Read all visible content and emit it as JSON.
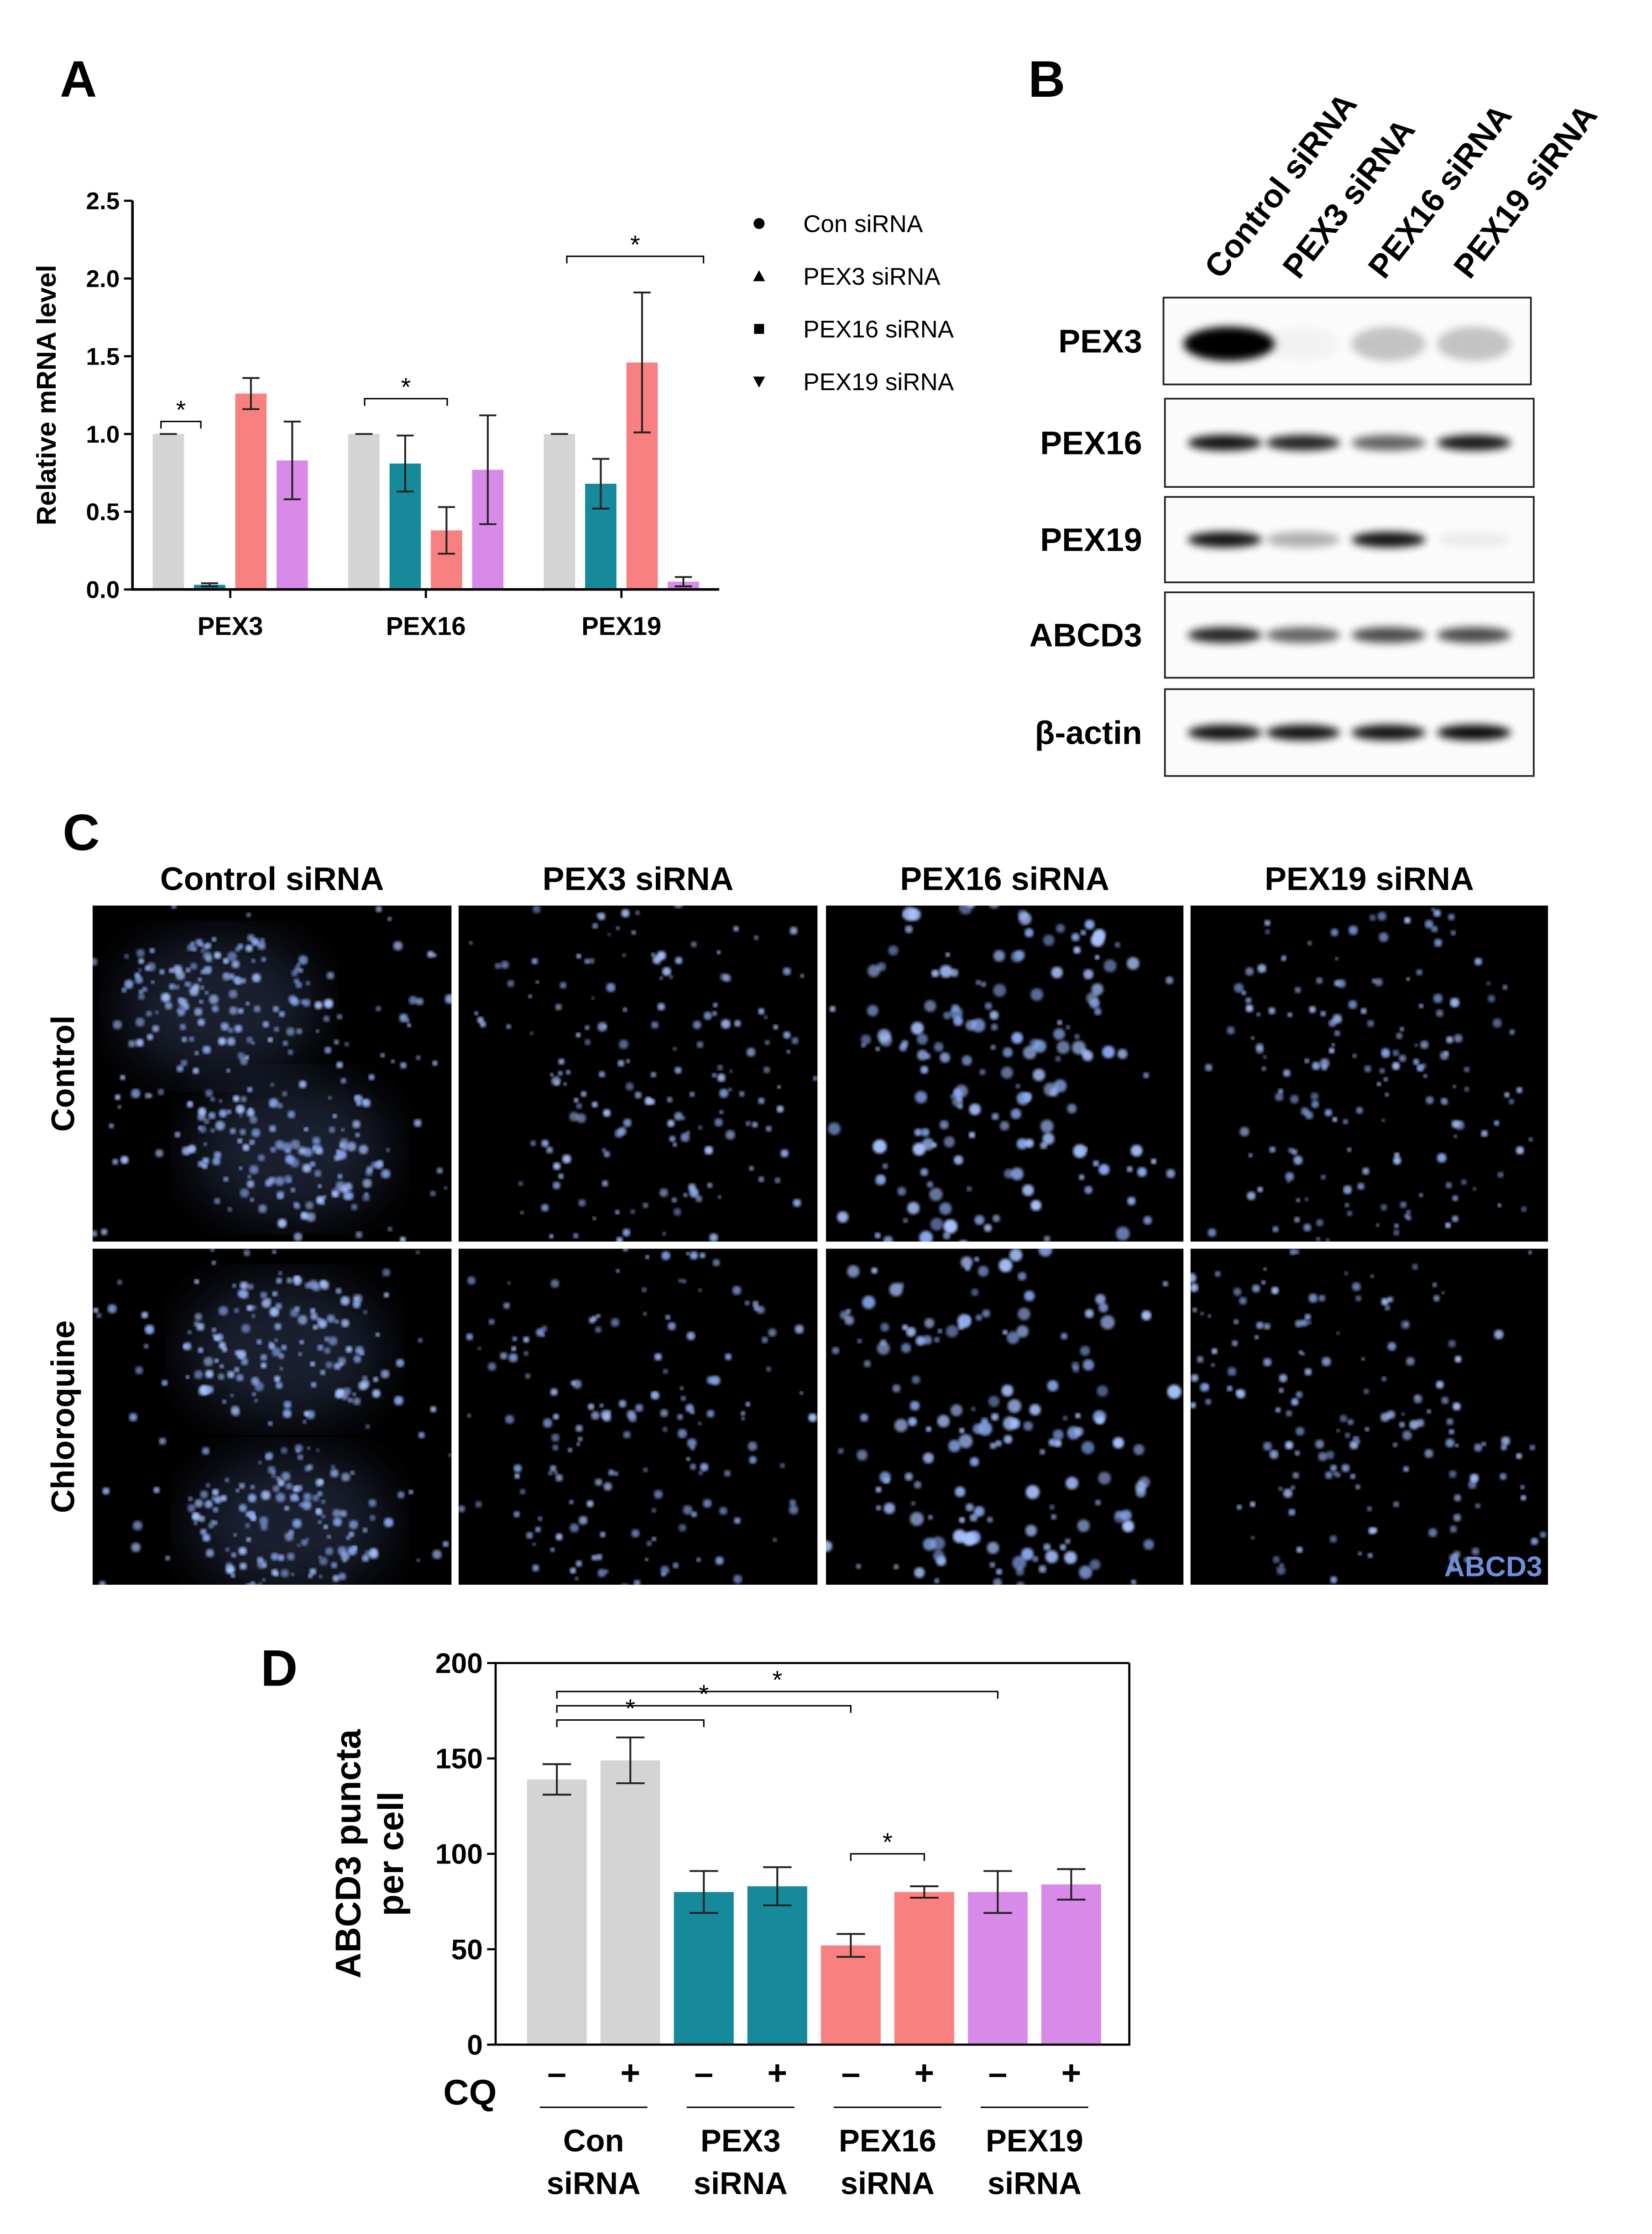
{
  "chart_data": [
    {
      "type": "bar",
      "panel": "A",
      "ylabel": "Relative mRNA level",
      "categories": [
        "PEX3",
        "PEX16",
        "PEX19"
      ],
      "series": [
        {
          "name": "Con siRNA",
          "color": "#d4d4d4",
          "marker": "circle",
          "values": [
            1.0,
            1.0,
            1.0
          ],
          "errors": [
            0,
            0,
            0
          ]
        },
        {
          "name": "PEX3 siRNA",
          "color": "#16899a",
          "marker": "triangle",
          "values": [
            0.03,
            0.81,
            0.68
          ],
          "errors": [
            0.01,
            0.18,
            0.16
          ]
        },
        {
          "name": "PEX16 siRNA",
          "color": "#f88080",
          "marker": "square",
          "values": [
            1.26,
            0.38,
            1.46
          ],
          "errors": [
            0.1,
            0.15,
            0.45
          ]
        },
        {
          "name": "PEX19 siRNA",
          "color": "#d88ae8",
          "marker": "triangle-down",
          "values": [
            0.83,
            0.77,
            0.05
          ],
          "errors": [
            0.25,
            0.35,
            0.03
          ]
        }
      ],
      "ylim": [
        0,
        2.5
      ],
      "yticks": [
        {
          "value": 0,
          "label": "0.0"
        },
        {
          "value": 0.5,
          "label": "0.5"
        },
        {
          "value": 1,
          "label": "1.0"
        },
        {
          "value": 1.5,
          "label": "1.5"
        },
        {
          "value": 2,
          "label": "2.0"
        },
        {
          "value": 2.5,
          "label": "2.5"
        }
      ],
      "annotations": [
        "*",
        "*",
        "*"
      ]
    },
    {
      "type": "bar",
      "panel": "D",
      "ylabel": [
        "ABCD3 puncta",
        "per cell"
      ],
      "xlabel": "CQ",
      "categories": [
        "–",
        "+",
        "–",
        "+",
        "–",
        "+",
        "–",
        "+"
      ],
      "groups": [
        [
          "Con",
          "siRNA"
        ],
        [
          "PEX3",
          "siRNA"
        ],
        [
          "PEX16",
          "siRNA"
        ],
        [
          "PEX19",
          "siRNA"
        ]
      ],
      "values": [
        139,
        149,
        80,
        83,
        52,
        80,
        80,
        84
      ],
      "errors": [
        8,
        12,
        11,
        10,
        6,
        3,
        11,
        8
      ],
      "colors": [
        "#d4d4d4",
        "#d4d4d4",
        "#16899a",
        "#16899a",
        "#f88080",
        "#f88080",
        "#d88ae8",
        "#d88ae8"
      ],
      "ylim": [
        0,
        200
      ],
      "yticks": [
        0,
        50,
        100,
        150,
        200
      ],
      "annotations": [
        "*",
        "*",
        "*",
        "*"
      ]
    }
  ],
  "blot": {
    "panel": "B",
    "lanes": [
      "Control siRNA",
      "PEX3 siRNA",
      "PEX16 siRNA",
      "PEX19 siRNA"
    ],
    "proteins": [
      "PEX3",
      "PEX16",
      "PEX19",
      "ABCD3",
      "β-actin"
    ]
  },
  "images": {
    "panel": "C",
    "columns": [
      "Control siRNA",
      "PEX3 siRNA",
      "PEX16 siRNA",
      "PEX19 siRNA"
    ],
    "rows": [
      "Control",
      "Chloroquine"
    ],
    "stain": "ABCD3"
  }
}
